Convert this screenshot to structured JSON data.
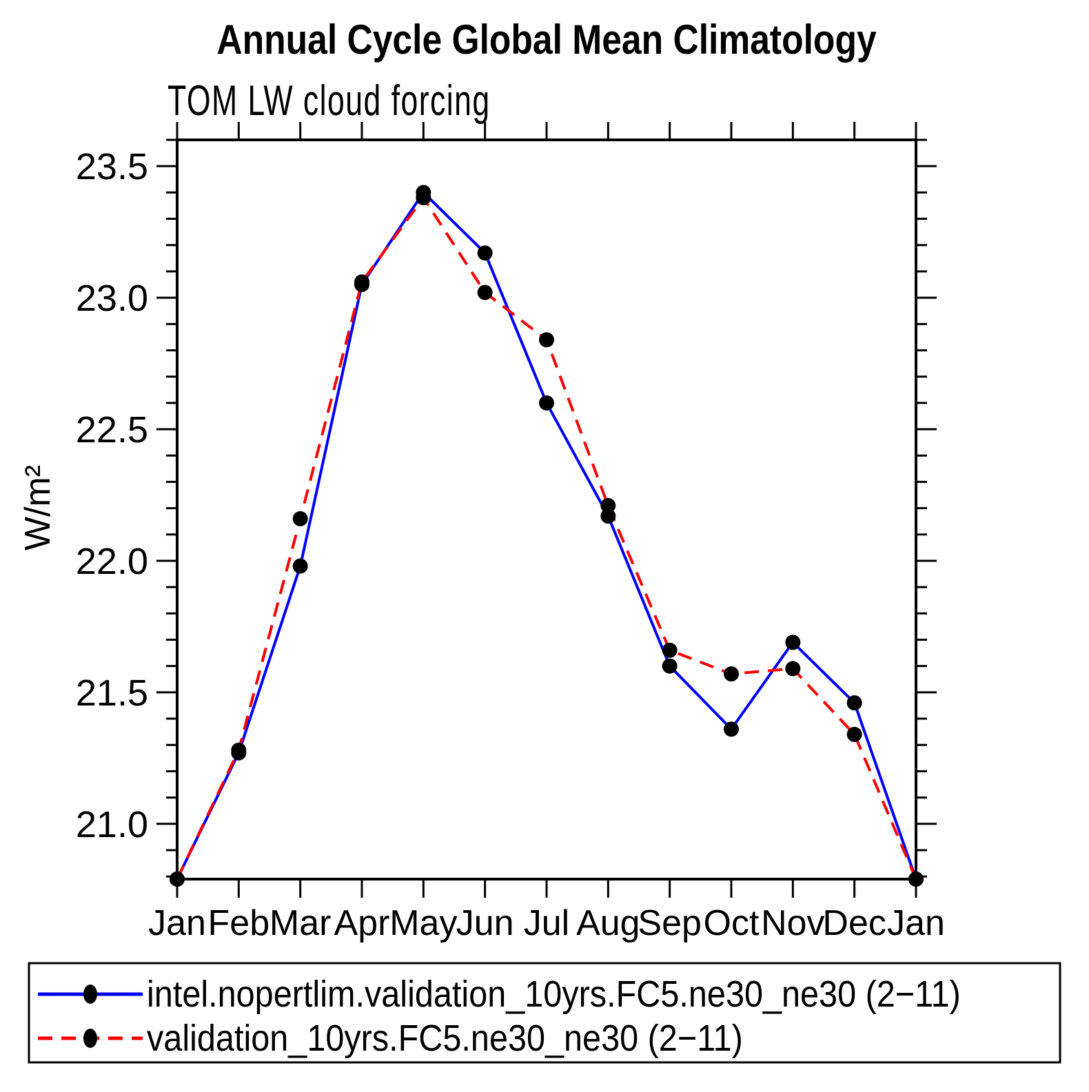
{
  "title": "Annual Cycle Global Mean Climatology",
  "subtitle": "TOM LW cloud forcing",
  "chart_data": {
    "type": "line",
    "title": "Annual Cycle Global Mean Climatology",
    "subtitle": "TOM LW cloud forcing",
    "xlabel": "",
    "ylabel": "W/m²",
    "categories": [
      "Jan",
      "Feb",
      "Mar",
      "Apr",
      "May",
      "Jun",
      "Jul",
      "Aug",
      "Sep",
      "Oct",
      "Nov",
      "Dec",
      "Jan"
    ],
    "y_axis": {
      "min": 20.79,
      "max": 23.6,
      "major_ticks": [
        21.0,
        21.5,
        22.0,
        22.5,
        23.0,
        23.5
      ],
      "major_tick_labels": [
        "21.0",
        "21.5",
        "22.0",
        "22.5",
        "23.0",
        "23.5"
      ],
      "minor_step": 0.1
    },
    "grid": false,
    "legend_position": "bottom",
    "marker_color": "#000000",
    "series": [
      {
        "name": "intel.nopertlim.validation_10yrs.FC5.ne30_ne30 (2−11)",
        "color": "#0000ff",
        "line_style": "solid",
        "marker": "black-circle",
        "values": [
          20.79,
          21.27,
          21.98,
          23.05,
          23.4,
          23.17,
          22.6,
          22.17,
          21.6,
          21.36,
          21.69,
          21.46,
          20.79
        ]
      },
      {
        "name": "validation_10yrs.FC5.ne30_ne30 (2−11)",
        "color": "#ff0000",
        "line_style": "dashed",
        "marker": "black-circle",
        "values": [
          20.79,
          21.28,
          22.16,
          23.06,
          23.38,
          23.02,
          22.84,
          22.21,
          21.66,
          21.57,
          21.59,
          21.34,
          20.79
        ]
      }
    ]
  }
}
